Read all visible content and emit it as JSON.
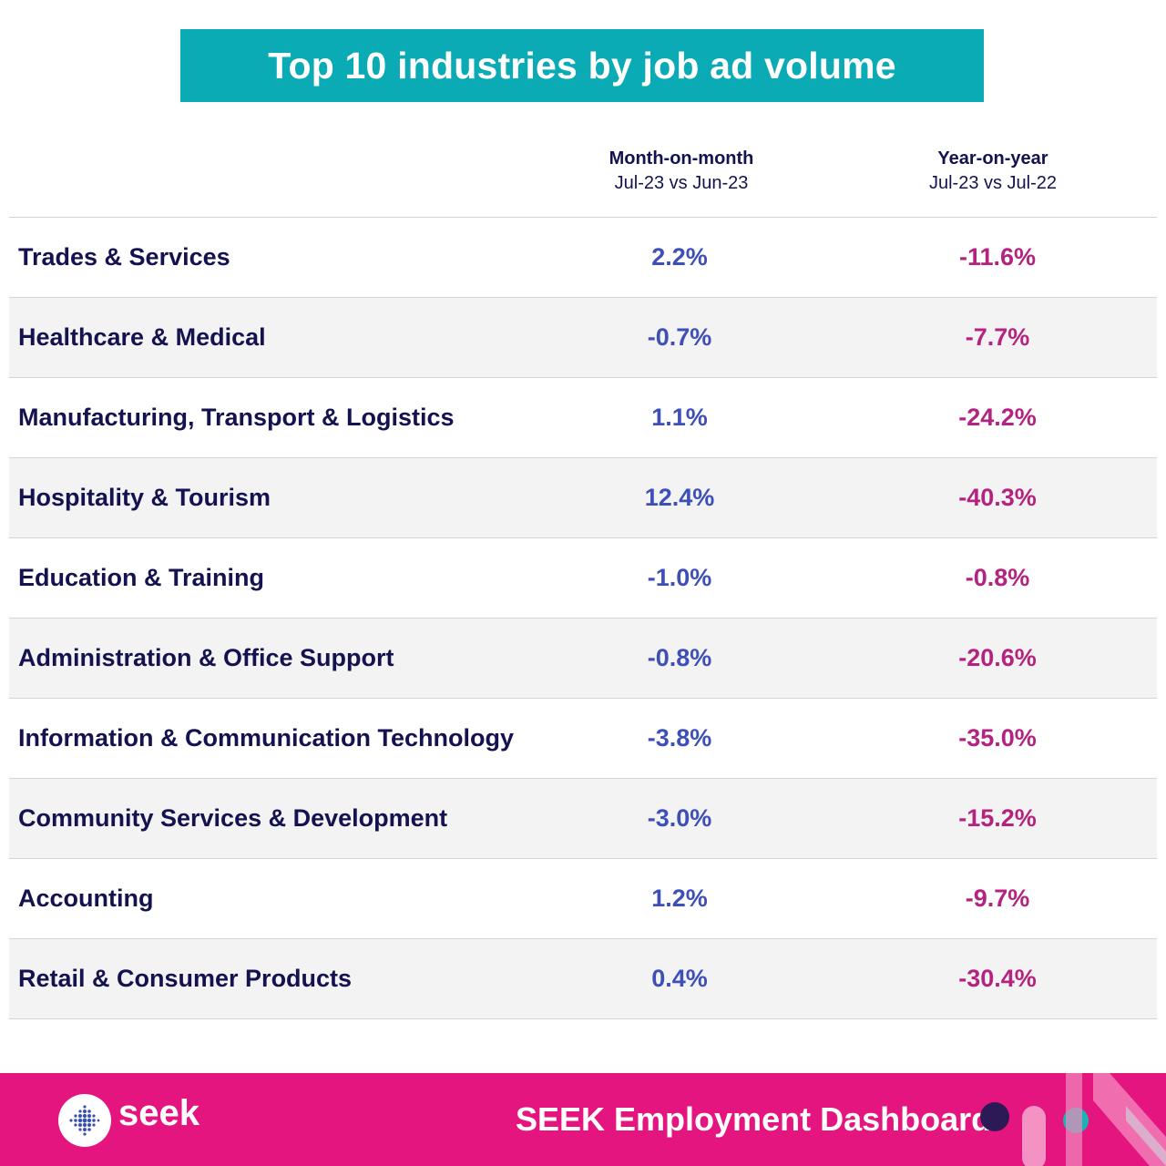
{
  "title": "Top 10 industries by job ad volume",
  "columns": {
    "mom": {
      "heading": "Month-on-month",
      "subheading": "Jul-23 vs Jun-23"
    },
    "yoy": {
      "heading": "Year-on-year",
      "subheading": "Jul-23 vs Jul-22"
    }
  },
  "chart_data": {
    "type": "table",
    "title": "Top 10 industries by job ad volume",
    "columns": [
      "Month-on-month Jul-23 vs Jun-23",
      "Year-on-year Jul-23 vs Jul-22"
    ],
    "rows": [
      {
        "industry": "Trades & Services",
        "mom": "2.2%",
        "yoy": "-11.6%"
      },
      {
        "industry": "Healthcare & Medical",
        "mom": "-0.7%",
        "yoy": "-7.7%"
      },
      {
        "industry": "Manufacturing, Transport & Logistics",
        "mom": "1.1%",
        "yoy": "-24.2%"
      },
      {
        "industry": "Hospitality & Tourism",
        "mom": "12.4%",
        "yoy": "-40.3%"
      },
      {
        "industry": "Education & Training",
        "mom": "-1.0%",
        "yoy": "-0.8%"
      },
      {
        "industry": "Administration & Office Support",
        "mom": "-0.8%",
        "yoy": "-20.6%"
      },
      {
        "industry": "Information & Communication Technology",
        "mom": "-3.8%",
        "yoy": "-35.0%"
      },
      {
        "industry": "Community Services & Development",
        "mom": "-3.0%",
        "yoy": "-15.2%"
      },
      {
        "industry": "Accounting",
        "mom": "1.2%",
        "yoy": "-9.7%"
      },
      {
        "industry": "Retail & Consumer Products",
        "mom": "0.4%",
        "yoy": "-30.4%"
      }
    ]
  },
  "footer": {
    "logo_text": "seek",
    "title": "SEEK Employment Dashboard",
    "logo_icon": "seek-dots-logo-icon"
  },
  "colors": {
    "banner": "#0aabb4",
    "footer": "#e5157f",
    "mom_text": "#3e4fb8",
    "yoy_text": "#b3237f",
    "label_text": "#14124f",
    "alt_row": "#f3f3f3"
  }
}
